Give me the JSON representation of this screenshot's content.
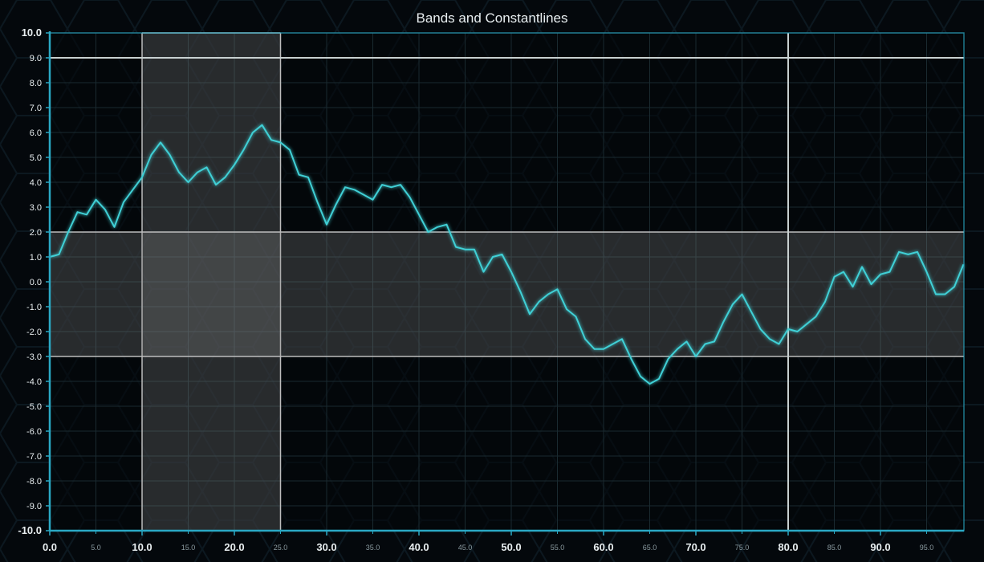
{
  "chart_data": {
    "type": "line",
    "title": "Bands and Constantlines",
    "xlabel": "",
    "ylabel": "",
    "xlim": [
      0,
      99
    ],
    "ylim": [
      -10,
      10
    ],
    "grid": true,
    "x_ticks_major": [
      "0.0",
      "10.0",
      "20.0",
      "30.0",
      "40.0",
      "50.0",
      "60.0",
      "70.0",
      "80.0",
      "90.0"
    ],
    "x_ticks_minor": [
      "5.0",
      "15.0",
      "25.0",
      "35.0",
      "45.0",
      "55.0",
      "65.0",
      "75.0",
      "85.0",
      "95.0"
    ],
    "y_ticks": [
      "10.0",
      "9.0",
      "8.0",
      "7.0",
      "6.0",
      "5.0",
      "4.0",
      "3.0",
      "2.0",
      "1.0",
      "0.0",
      "-1.0",
      "-2.0",
      "-3.0",
      "-4.0",
      "-5.0",
      "-6.0",
      "-7.0",
      "-8.0",
      "-9.0",
      "-10.0"
    ],
    "x_bands": [
      {
        "from": 10,
        "to": 25
      }
    ],
    "y_bands": [
      {
        "from": -3,
        "to": 2
      }
    ],
    "constant_lines": {
      "x": [
        80
      ],
      "y": [
        9
      ]
    },
    "series": [
      {
        "color": "#3fd0d6",
        "x": [
          0,
          1,
          2,
          3,
          4,
          5,
          6,
          7,
          8,
          9,
          10,
          11,
          12,
          13,
          14,
          15,
          16,
          17,
          18,
          19,
          20,
          21,
          22,
          23,
          24,
          25,
          26,
          27,
          28,
          29,
          30,
          31,
          32,
          33,
          34,
          35,
          36,
          37,
          38,
          39,
          40,
          41,
          42,
          43,
          44,
          45,
          46,
          47,
          48,
          49,
          50,
          51,
          52,
          53,
          54,
          55,
          56,
          57,
          58,
          59,
          60,
          61,
          62,
          63,
          64,
          65,
          66,
          67,
          68,
          69,
          70,
          71,
          72,
          73,
          74,
          75,
          76,
          77,
          78,
          79,
          80,
          81,
          82,
          83,
          84,
          85,
          86,
          87,
          88,
          89,
          90,
          91,
          92,
          93,
          94,
          95,
          96,
          97,
          98,
          99
        ],
        "y": [
          1.0,
          1.1,
          2.0,
          2.8,
          2.7,
          3.3,
          2.9,
          2.2,
          3.2,
          3.7,
          4.2,
          5.1,
          5.6,
          5.1,
          4.4,
          4.0,
          4.4,
          4.6,
          3.9,
          4.2,
          4.7,
          5.3,
          6.0,
          6.3,
          5.7,
          5.6,
          5.3,
          4.3,
          4.2,
          3.2,
          2.3,
          3.1,
          3.8,
          3.7,
          3.5,
          3.3,
          3.9,
          3.8,
          3.9,
          3.4,
          2.7,
          2.0,
          2.2,
          2.3,
          1.4,
          1.3,
          1.3,
          0.4,
          1.0,
          1.1,
          0.4,
          -0.4,
          -1.3,
          -0.8,
          -0.5,
          -0.3,
          -1.1,
          -1.4,
          -2.3,
          -2.7,
          -2.7,
          -2.5,
          -2.3,
          -3.1,
          -3.8,
          -4.1,
          -3.9,
          -3.1,
          -2.7,
          -2.4,
          -3.0,
          -2.5,
          -2.4,
          -1.6,
          -0.9,
          -0.5,
          -1.2,
          -1.9,
          -2.3,
          -2.5,
          -1.9,
          -2.0,
          -1.7,
          -1.4,
          -0.8,
          0.2,
          0.4,
          -0.2,
          0.6,
          -0.1,
          0.3,
          0.4,
          1.2,
          1.1,
          1.2,
          0.4,
          -0.5,
          -0.5,
          -0.2,
          0.7
        ]
      }
    ]
  },
  "colors": {
    "background": "#04080c",
    "axis": "#2aa8c4",
    "grid": "#1a2a30",
    "band_fill": "#8a8a8a",
    "band_border": "#bdbdbd",
    "constant_line": "#c8d0d0",
    "text": "#e8eef0",
    "minor_text": "#8a9aa0"
  }
}
